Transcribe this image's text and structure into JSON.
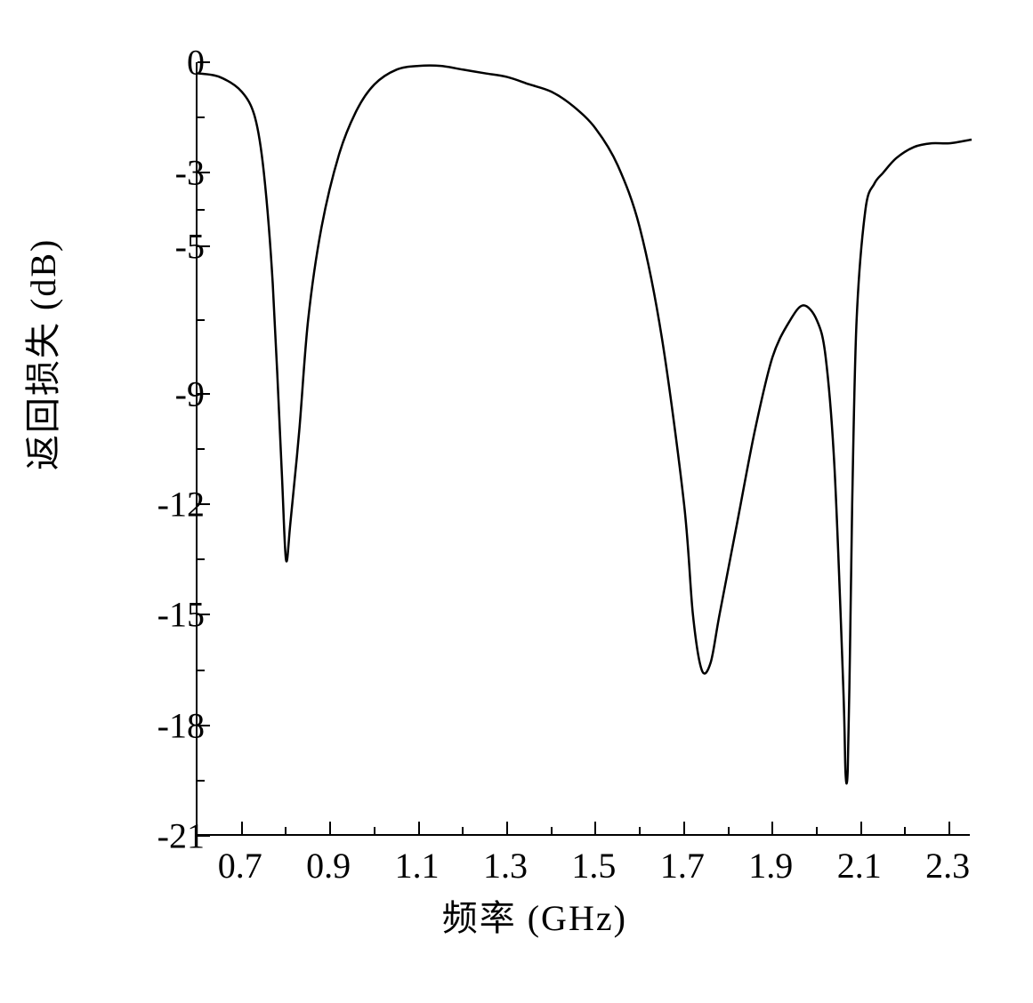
{
  "chart": {
    "type": "line",
    "xlabel": "频率 (GHz)",
    "ylabel": "返回损失 (dB)",
    "label_fontsize": 40,
    "tick_fontsize": 40,
    "background_color": "#ffffff",
    "line_color": "#000000",
    "axis_color": "#000000",
    "line_width": 2.5,
    "xlim": [
      0.6,
      2.35
    ],
    "ylim": [
      -21,
      0
    ],
    "y_ticks": [
      0,
      -3,
      -5,
      -9,
      -12,
      -15,
      -18,
      -21
    ],
    "y_minor_ticks": [
      -1.5,
      -4,
      -7,
      -10.5,
      -13.5,
      -16.5,
      -19.5
    ],
    "x_ticks": [
      0.7,
      0.9,
      1.1,
      1.3,
      1.5,
      1.7,
      1.9,
      2.1,
      2.3
    ],
    "x_minor_ticks": [
      0.8,
      1.0,
      1.2,
      1.4,
      1.6,
      1.8,
      2.0,
      2.2
    ],
    "series": {
      "x": [
        0.6,
        0.65,
        0.7,
        0.73,
        0.75,
        0.77,
        0.79,
        0.8,
        0.81,
        0.83,
        0.85,
        0.88,
        0.92,
        0.96,
        1.0,
        1.05,
        1.1,
        1.15,
        1.2,
        1.25,
        1.3,
        1.35,
        1.4,
        1.45,
        1.5,
        1.55,
        1.6,
        1.65,
        1.7,
        1.72,
        1.74,
        1.76,
        1.78,
        1.82,
        1.86,
        1.9,
        1.94,
        1.97,
        2.0,
        2.02,
        2.04,
        2.06,
        2.065,
        2.07,
        2.075,
        2.08,
        2.09,
        2.11,
        2.13,
        2.15,
        2.18,
        2.22,
        2.26,
        2.3,
        2.35
      ],
      "y": [
        -0.3,
        -0.4,
        -0.8,
        -1.5,
        -3.0,
        -6.0,
        -11.0,
        -13.5,
        -12.5,
        -10.0,
        -7.0,
        -4.5,
        -2.5,
        -1.3,
        -0.6,
        -0.2,
        -0.1,
        -0.1,
        -0.2,
        -0.3,
        -0.4,
        -0.6,
        -0.8,
        -1.2,
        -1.8,
        -2.8,
        -4.5,
        -7.5,
        -12.0,
        -15.0,
        -16.5,
        -16.3,
        -15.0,
        -12.5,
        -10.0,
        -8.0,
        -7.0,
        -6.6,
        -7.0,
        -8.0,
        -11.0,
        -17.0,
        -19.3,
        -19.2,
        -16.0,
        -12.0,
        -7.0,
        -4.0,
        -3.3,
        -3.0,
        -2.6,
        -2.3,
        -2.2,
        -2.2,
        -2.1
      ]
    }
  }
}
